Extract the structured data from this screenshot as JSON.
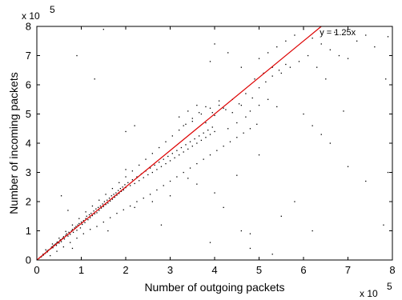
{
  "chart_data": {
    "type": "scatter",
    "title": "",
    "xlabel": "Number of outgoing packets",
    "ylabel": "Number of incoming packets",
    "xlim": [
      0,
      8
    ],
    "ylim": [
      0,
      8
    ],
    "x_ticks": [
      0,
      1,
      2,
      3,
      4,
      5,
      6,
      7,
      8
    ],
    "y_ticks": [
      0,
      1,
      2,
      3,
      4,
      5,
      6,
      7,
      8
    ],
    "x_scale_base": "x 10",
    "x_scale_exponent": "5",
    "y_scale_base": "x 10",
    "y_scale_exponent": "5",
    "grid": false,
    "legend": "none",
    "point_color": "#000000",
    "fit_line": {
      "label": "y = 1.25x",
      "slope": 1.25,
      "intercept": 0,
      "color": "#dd0000"
    },
    "series": [
      {
        "points": [
          [
            0.05,
            0.06
          ],
          [
            0.08,
            0.1
          ],
          [
            0.1,
            0.11
          ],
          [
            0.12,
            0.15
          ],
          [
            0.14,
            0.2
          ],
          [
            0.15,
            0.17
          ],
          [
            0.18,
            0.22
          ],
          [
            0.2,
            0.25
          ],
          [
            0.22,
            0.3
          ],
          [
            0.24,
            0.28
          ],
          [
            0.25,
            0.33
          ],
          [
            0.27,
            0.35
          ],
          [
            0.3,
            0.38
          ],
          [
            0.32,
            0.4
          ],
          [
            0.33,
            0.44
          ],
          [
            0.35,
            0.46
          ],
          [
            0.36,
            0.42
          ],
          [
            0.38,
            0.5
          ],
          [
            0.4,
            0.52
          ],
          [
            0.42,
            0.55
          ],
          [
            0.44,
            0.5
          ],
          [
            0.45,
            0.6
          ],
          [
            0.47,
            0.62
          ],
          [
            0.5,
            0.58
          ],
          [
            0.52,
            0.68
          ],
          [
            0.54,
            0.7
          ],
          [
            0.55,
            0.63
          ],
          [
            0.58,
            0.75
          ],
          [
            0.6,
            0.8
          ],
          [
            0.62,
            0.72
          ],
          [
            0.65,
            0.85
          ],
          [
            0.67,
            0.9
          ],
          [
            0.7,
            0.82
          ],
          [
            0.72,
            0.95
          ],
          [
            0.75,
            0.88
          ],
          [
            0.78,
            1.0
          ],
          [
            0.8,
            1.05
          ],
          [
            0.82,
            0.95
          ],
          [
            0.85,
            1.1
          ],
          [
            0.88,
            1.15
          ],
          [
            0.9,
            1.02
          ],
          [
            0.92,
            1.2
          ],
          [
            0.95,
            1.25
          ],
          [
            0.98,
            1.1
          ],
          [
            1.0,
            1.3
          ],
          [
            1.02,
            1.22
          ],
          [
            1.05,
            1.35
          ],
          [
            1.08,
            1.28
          ],
          [
            1.1,
            1.42
          ],
          [
            1.12,
            1.5
          ],
          [
            1.15,
            1.38
          ],
          [
            1.18,
            1.55
          ],
          [
            1.2,
            1.45
          ],
          [
            1.22,
            1.6
          ],
          [
            1.25,
            1.52
          ],
          [
            1.28,
            1.68
          ],
          [
            1.3,
            1.58
          ],
          [
            1.33,
            1.75
          ],
          [
            1.35,
            1.62
          ],
          [
            1.38,
            1.8
          ],
          [
            1.4,
            1.7
          ],
          [
            1.43,
            1.85
          ],
          [
            1.45,
            1.78
          ],
          [
            1.48,
            1.92
          ],
          [
            1.5,
            1.83
          ],
          [
            1.52,
            2.0
          ],
          [
            1.55,
            1.9
          ],
          [
            1.58,
            2.05
          ],
          [
            1.6,
            1.95
          ],
          [
            1.63,
            2.12
          ],
          [
            1.65,
            2.02
          ],
          [
            1.68,
            2.2
          ],
          [
            1.7,
            2.08
          ],
          [
            1.73,
            2.25
          ],
          [
            1.75,
            2.15
          ],
          [
            1.78,
            2.3
          ],
          [
            1.8,
            2.22
          ],
          [
            1.83,
            2.38
          ],
          [
            1.85,
            2.28
          ],
          [
            1.88,
            2.45
          ],
          [
            1.9,
            2.35
          ],
          [
            1.93,
            2.5
          ],
          [
            1.95,
            2.4
          ],
          [
            1.98,
            2.58
          ],
          [
            2.0,
            2.48
          ],
          [
            2.05,
            2.65
          ],
          [
            2.1,
            2.55
          ],
          [
            2.15,
            2.75
          ],
          [
            2.2,
            2.62
          ],
          [
            2.25,
            2.85
          ],
          [
            2.3,
            2.72
          ],
          [
            2.35,
            2.95
          ],
          [
            2.4,
            2.82
          ],
          [
            2.45,
            3.05
          ],
          [
            2.5,
            2.92
          ],
          [
            2.55,
            3.15
          ],
          [
            2.6,
            3.0
          ],
          [
            2.65,
            3.25
          ],
          [
            2.7,
            3.1
          ],
          [
            2.75,
            3.35
          ],
          [
            2.8,
            3.2
          ],
          [
            2.85,
            3.45
          ],
          [
            2.9,
            3.3
          ],
          [
            2.95,
            3.55
          ],
          [
            3.0,
            3.4
          ],
          [
            3.05,
            3.65
          ],
          [
            3.1,
            3.5
          ],
          [
            3.15,
            3.75
          ],
          [
            3.2,
            3.6
          ],
          [
            3.25,
            3.85
          ],
          [
            3.3,
            3.7
          ],
          [
            3.35,
            3.95
          ],
          [
            3.4,
            3.8
          ],
          [
            3.45,
            4.05
          ],
          [
            3.5,
            3.9
          ],
          [
            3.55,
            4.15
          ],
          [
            3.6,
            4.0
          ],
          [
            3.65,
            4.25
          ],
          [
            3.7,
            4.1
          ],
          [
            3.75,
            4.35
          ],
          [
            3.8,
            4.2
          ],
          [
            3.85,
            4.45
          ],
          [
            3.9,
            4.3
          ],
          [
            3.95,
            4.55
          ],
          [
            4.0,
            4.4
          ],
          [
            0.3,
            0.15
          ],
          [
            0.45,
            0.3
          ],
          [
            0.6,
            0.45
          ],
          [
            0.75,
            0.6
          ],
          [
            0.9,
            0.75
          ],
          [
            1.05,
            0.9
          ],
          [
            1.2,
            1.05
          ],
          [
            1.35,
            1.15
          ],
          [
            1.5,
            1.3
          ],
          [
            1.65,
            1.45
          ],
          [
            1.8,
            1.6
          ],
          [
            1.95,
            1.72
          ],
          [
            2.1,
            1.85
          ],
          [
            2.25,
            2.0
          ],
          [
            2.4,
            2.12
          ],
          [
            2.55,
            2.25
          ],
          [
            2.7,
            2.4
          ],
          [
            2.85,
            2.55
          ],
          [
            3.0,
            2.7
          ],
          [
            3.15,
            2.85
          ],
          [
            3.3,
            3.0
          ],
          [
            3.45,
            3.15
          ],
          [
            3.6,
            3.3
          ],
          [
            3.75,
            3.45
          ],
          [
            3.9,
            3.6
          ],
          [
            4.05,
            3.75
          ],
          [
            4.2,
            3.9
          ],
          [
            4.35,
            4.05
          ],
          [
            4.5,
            4.2
          ],
          [
            4.65,
            4.35
          ],
          [
            4.8,
            4.5
          ],
          [
            4.95,
            4.65
          ],
          [
            0.2,
            0.35
          ],
          [
            0.35,
            0.55
          ],
          [
            0.5,
            0.75
          ],
          [
            0.65,
            0.98
          ],
          [
            0.8,
            1.2
          ],
          [
            0.95,
            1.42
          ],
          [
            1.1,
            1.65
          ],
          [
            1.25,
            1.85
          ],
          [
            1.4,
            2.05
          ],
          [
            1.55,
            2.25
          ],
          [
            1.7,
            2.45
          ],
          [
            1.85,
            2.65
          ],
          [
            2.0,
            2.85
          ],
          [
            2.15,
            3.05
          ],
          [
            2.3,
            3.25
          ],
          [
            2.45,
            3.45
          ],
          [
            2.6,
            3.65
          ],
          [
            2.75,
            3.85
          ],
          [
            2.9,
            4.05
          ],
          [
            3.05,
            4.25
          ],
          [
            3.2,
            4.45
          ],
          [
            3.35,
            4.65
          ],
          [
            3.5,
            4.85
          ],
          [
            3.65,
            5.05
          ],
          [
            3.8,
            5.25
          ],
          [
            3.95,
            5.05
          ],
          [
            4.1,
            5.3
          ],
          [
            4.25,
            5.15
          ],
          [
            4.4,
            5.5
          ],
          [
            4.55,
            5.35
          ],
          [
            4.7,
            5.7
          ],
          [
            4.85,
            5.55
          ],
          [
            5.0,
            5.9
          ],
          [
            5.15,
            6.1
          ],
          [
            5.3,
            6.3
          ],
          [
            5.45,
            6.5
          ],
          [
            5.6,
            6.7
          ],
          [
            3.2,
            4.9
          ],
          [
            3.4,
            5.1
          ],
          [
            3.6,
            5.3
          ],
          [
            3.3,
            4.6
          ],
          [
            3.5,
            4.75
          ],
          [
            3.7,
            5.0
          ],
          [
            3.9,
            5.2
          ],
          [
            4.1,
            5.45
          ],
          [
            3.8,
            4.7
          ],
          [
            4.0,
            4.95
          ],
          [
            4.2,
            5.2
          ],
          [
            4.4,
            5.05
          ],
          [
            4.6,
            5.3
          ],
          [
            4.8,
            5.1
          ],
          [
            5.0,
            5.3
          ],
          [
            5.2,
            5.5
          ],
          [
            5.4,
            5.25
          ],
          [
            4.3,
            4.5
          ],
          [
            4.5,
            4.7
          ],
          [
            4.7,
            4.9
          ],
          [
            5.0,
            6.9
          ],
          [
            5.2,
            7.1
          ],
          [
            5.4,
            7.3
          ],
          [
            5.6,
            7.5
          ],
          [
            5.8,
            7.7
          ],
          [
            6.0,
            7.9
          ],
          [
            6.2,
            7.6
          ],
          [
            6.4,
            7.4
          ],
          [
            6.6,
            7.2
          ],
          [
            6.8,
            7.0
          ],
          [
            5.5,
            6.4
          ],
          [
            5.7,
            6.6
          ],
          [
            5.9,
            6.8
          ],
          [
            6.1,
            7.0
          ],
          [
            6.3,
            6.6
          ],
          [
            6.5,
            6.2
          ],
          [
            4.9,
            6.2
          ],
          [
            5.1,
            6.4
          ],
          [
            5.3,
            6.6
          ],
          [
            7.2,
            7.5
          ],
          [
            7.6,
            7.3
          ],
          [
            7.9,
            7.65
          ],
          [
            7.85,
            6.2
          ],
          [
            7.4,
            7.7
          ],
          [
            6.7,
            7.8
          ],
          [
            7.0,
            6.9
          ],
          [
            6.0,
            5.0
          ],
          [
            6.2,
            4.6
          ],
          [
            6.4,
            4.3
          ],
          [
            6.6,
            4.0
          ],
          [
            7.0,
            3.2
          ],
          [
            7.4,
            2.7
          ],
          [
            7.9,
            3.0
          ],
          [
            7.8,
            1.2
          ],
          [
            6.2,
            1.0
          ],
          [
            5.8,
            2.0
          ],
          [
            5.5,
            1.5
          ],
          [
            4.8,
            0.4
          ],
          [
            4.6,
            1.0
          ],
          [
            5.3,
            0.2
          ],
          [
            4.2,
            1.8
          ],
          [
            4.0,
            2.3
          ],
          [
            3.6,
            2.6
          ],
          [
            4.5,
            2.9
          ],
          [
            5.0,
            3.6
          ],
          [
            2.0,
            4.4
          ],
          [
            2.2,
            4.6
          ],
          [
            2.0,
            3.1
          ],
          [
            1.3,
            6.2
          ],
          [
            1.5,
            7.9
          ],
          [
            0.9,
            7.0
          ],
          [
            0.55,
            2.2
          ],
          [
            0.7,
            1.7
          ],
          [
            0.8,
            0.4
          ],
          [
            1.6,
            1.0
          ],
          [
            2.8,
            1.2
          ],
          [
            3.9,
            0.6
          ],
          [
            4.8,
            0.9
          ],
          [
            2.2,
            1.8
          ],
          [
            2.6,
            2.0
          ],
          [
            3.0,
            2.2
          ],
          [
            3.4,
            2.8
          ],
          [
            6.9,
            5.1
          ],
          [
            4.0,
            7.4
          ],
          [
            4.3,
            7.1
          ],
          [
            3.9,
            6.8
          ],
          [
            4.6,
            6.6
          ]
        ]
      }
    ]
  }
}
